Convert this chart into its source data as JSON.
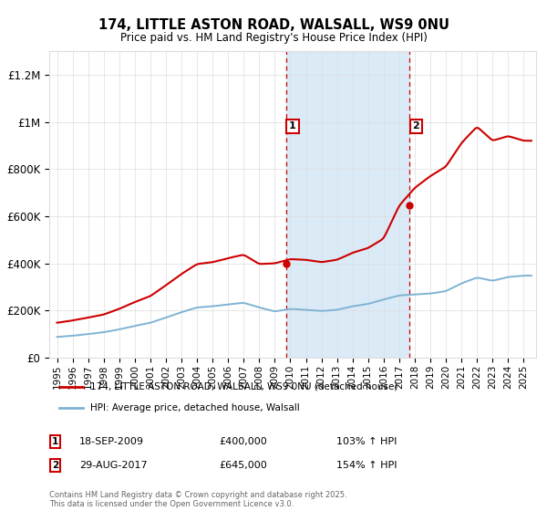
{
  "title": "174, LITTLE ASTON ROAD, WALSALL, WS9 0NU",
  "subtitle": "Price paid vs. HM Land Registry's House Price Index (HPI)",
  "ylim": [
    0,
    1300000
  ],
  "yticks": [
    0,
    200000,
    400000,
    600000,
    800000,
    1000000,
    1200000
  ],
  "ytick_labels": [
    "£0",
    "£200K",
    "£400K",
    "£600K",
    "£800K",
    "£1M",
    "£1.2M"
  ],
  "t1_year": 2009.72,
  "t1_price": 400000,
  "t1_date": "18-SEP-2009",
  "t1_pct": "103% ↑ HPI",
  "t2_year": 2017.66,
  "t2_price": 645000,
  "t2_date": "29-AUG-2017",
  "t2_pct": "154% ↑ HPI",
  "legend_property": "174, LITTLE ASTON ROAD, WALSALL, WS9 0NU (detached house)",
  "legend_hpi": "HPI: Average price, detached house, Walsall",
  "footer": "Contains HM Land Registry data © Crown copyright and database right 2025.\nThis data is licensed under the Open Government Licence v3.0.",
  "bg": "#ffffff",
  "shade_color": "#dbeaf7",
  "red": "#cc0000",
  "blue": "#7fb3d3",
  "grid_color": "#dddddd",
  "box_edge": "#cc0000",
  "xlim_start": 1994.5,
  "xlim_end": 2025.8,
  "hpi_years": [
    1995,
    1996,
    1997,
    1998,
    1999,
    2000,
    2001,
    2002,
    2003,
    2004,
    2005,
    2006,
    2007,
    2008,
    2009,
    2010,
    2011,
    2012,
    2013,
    2014,
    2015,
    2016,
    2017,
    2018,
    2019,
    2020,
    2021,
    2022,
    2023,
    2024,
    2025
  ],
  "hpi_vals": [
    88000,
    93000,
    100000,
    108000,
    120000,
    135000,
    148000,
    170000,
    193000,
    213000,
    218000,
    226000,
    233000,
    213000,
    196000,
    207000,
    203000,
    198000,
    203000,
    218000,
    228000,
    247000,
    264000,
    268000,
    272000,
    282000,
    315000,
    340000,
    326000,
    342000,
    348000
  ],
  "prop_years": [
    1995,
    1996,
    1997,
    1998,
    1999,
    2000,
    2001,
    2002,
    2003,
    2004,
    2005,
    2006,
    2007,
    2008,
    2009,
    2010,
    2011,
    2012,
    2013,
    2014,
    2015,
    2016,
    2017,
    2018,
    2019,
    2020,
    2021,
    2022,
    2023,
    2024,
    2025
  ],
  "prop_vals": [
    148000,
    158000,
    170000,
    183000,
    207000,
    236000,
    261000,
    307000,
    355000,
    397000,
    405000,
    422000,
    437000,
    397000,
    400000,
    418000,
    415000,
    405000,
    415000,
    445000,
    465000,
    505000,
    645000,
    720000,
    770000,
    810000,
    910000,
    980000,
    920000,
    940000,
    920000
  ]
}
